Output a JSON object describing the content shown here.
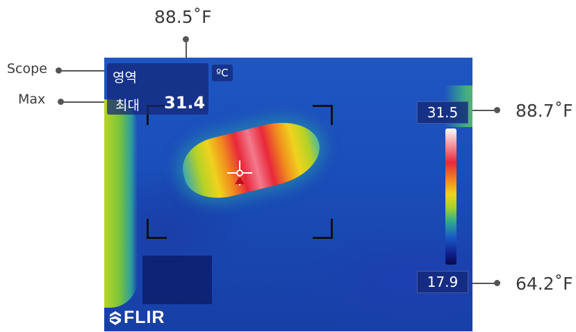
{
  "annotations": {
    "top_temp": "88.5˚F",
    "scope": "Scope",
    "max": "Max",
    "scale_top_f": "88.7˚F",
    "scale_bottom_f": "64.2˚F"
  },
  "overlay": {
    "region_label": "영역",
    "max_label": "최대",
    "max_value": "31.4",
    "unit": "ºC",
    "scale_top": "31.5",
    "scale_bottom": "17.9",
    "brand": "FLIR"
  },
  "colors": {
    "overlay_bg": "#14287a",
    "hot_spot": "#e8283a",
    "background": "#1f56c2"
  },
  "icons": {
    "crosshair": "crosshair-icon",
    "logo": "flir-logo-icon"
  }
}
